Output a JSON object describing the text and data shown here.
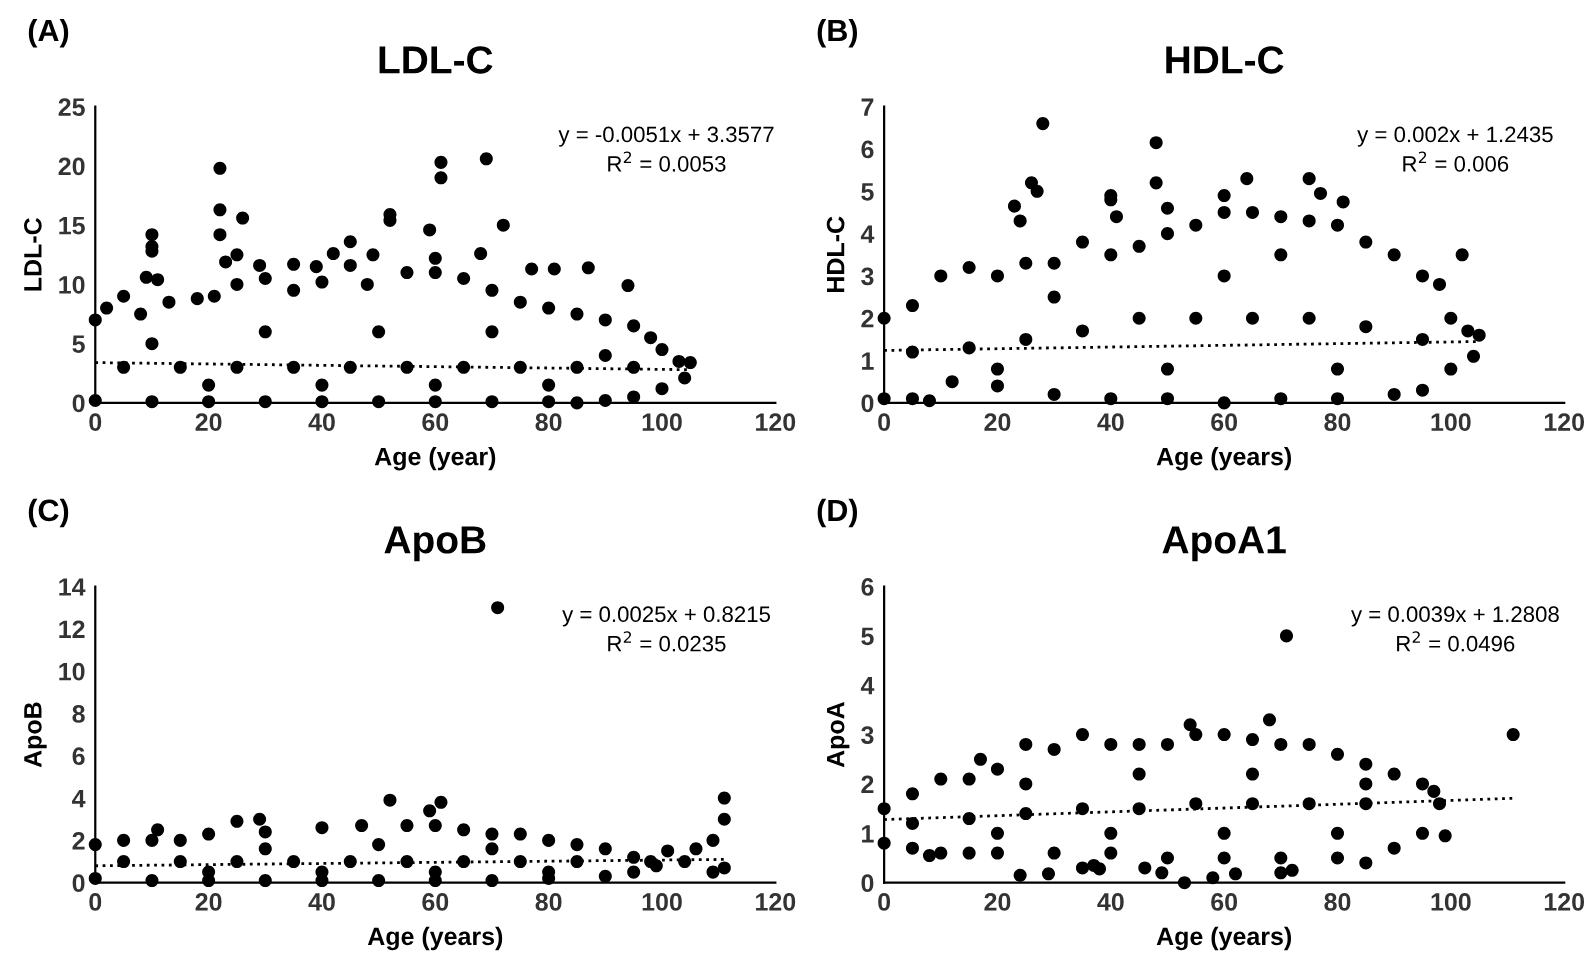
{
  "chart_data": [
    {
      "type": "scatter",
      "title": "LDL-C",
      "xlabel": "Age (year)",
      "ylabel": "LDL-C",
      "annotations": [
        "(A)",
        "y = -0.0051x + 3.3577",
        "R$^{2}$ = 0.0053"
      ],
      "xlim": [
        0,
        120
      ],
      "xticks": [
        0,
        20,
        40,
        60,
        80,
        100,
        120
      ],
      "ylim": [
        0,
        25
      ],
      "yticks": [
        0,
        5,
        10,
        15,
        20,
        25
      ],
      "grid": false,
      "legend": false,
      "series": [
        {
          "marker": "circle",
          "color": "#000000",
          "x": [
            10,
            10,
            10,
            9,
            11,
            22,
            22,
            22,
            26,
            23,
            25,
            29,
            35,
            39,
            42,
            45,
            45,
            49,
            52,
            52,
            59,
            61,
            61,
            69,
            68,
            72,
            77,
            81,
            87,
            94,
            60,
            0,
            2,
            5,
            8,
            13,
            18,
            21,
            25,
            30,
            35,
            40,
            48,
            55,
            60,
            65,
            70,
            75,
            80,
            85,
            90,
            95,
            98,
            100,
            103,
            105,
            104,
            0,
            10,
            20,
            30,
            40,
            50,
            60,
            70,
            80,
            85,
            90,
            95,
            100,
            5,
            15,
            25,
            35,
            45,
            55,
            65,
            75,
            85,
            95,
            10,
            30,
            50,
            70,
            90,
            20,
            40,
            60,
            80
          ],
          "values": [
            14.2,
            13.2,
            12.8,
            10.6,
            10.4,
            19.8,
            16.3,
            14.2,
            15.6,
            11.9,
            12.5,
            11.6,
            11.7,
            11.5,
            12.6,
            13.6,
            11.6,
            12.5,
            15.9,
            15.4,
            14.6,
            20.3,
            19.0,
            20.6,
            12.6,
            15.0,
            11.3,
            11.3,
            11.4,
            9.9,
            12.2,
            7,
            8,
            9,
            7.5,
            8.5,
            8.8,
            9,
            10,
            10.5,
            9.5,
            10.2,
            10,
            11,
            11,
            10.5,
            9.5,
            8.5,
            8,
            7.5,
            7,
            6.5,
            5.5,
            4.5,
            3.5,
            3.4,
            2.1,
            0.2,
            0.1,
            0.1,
            0.1,
            0.1,
            0.1,
            0.1,
            0.1,
            0.1,
            0,
            0.2,
            0.5,
            1.2,
            3,
            3,
            3,
            3,
            3,
            3,
            3,
            3,
            3,
            3,
            5,
            6,
            6,
            6,
            4,
            1.5,
            1.5,
            1.5,
            1.5
          ]
        },
        {
          "type": "line",
          "color": "#000000",
          "line_style": "dotted",
          "x": [
            0,
            105
          ],
          "values": [
            3.4,
            2.8
          ]
        }
      ]
    },
    {
      "type": "scatter",
      "title": "HDL-C",
      "xlabel": "Age (years)",
      "ylabel": "HDL-C",
      "annotations": [
        "(B)",
        "y = 0.002x + 1.2435",
        "R$^{2}$ = 0.006"
      ],
      "xlim": [
        0,
        120
      ],
      "xticks": [
        0,
        20,
        40,
        60,
        80,
        100,
        120
      ],
      "ylim": [
        0,
        7
      ],
      "yticks": [
        0,
        1,
        2,
        3,
        4,
        5,
        6,
        7
      ],
      "grid": false,
      "legend": false,
      "series": [
        {
          "marker": "circle",
          "color": "#000000",
          "x": [
            28,
            48,
            48,
            26,
            27,
            23,
            24,
            40,
            40,
            41,
            50,
            64,
            75,
            77,
            81,
            102,
            60,
            0,
            5,
            10,
            15,
            20,
            25,
            30,
            35,
            40,
            45,
            50,
            55,
            60,
            65,
            70,
            75,
            80,
            85,
            90,
            95,
            98,
            100,
            103,
            105,
            0,
            5,
            8,
            12,
            20,
            30,
            40,
            50,
            60,
            70,
            80,
            90,
            95,
            100,
            104,
            5,
            15,
            25,
            35,
            45,
            55,
            65,
            75,
            85,
            95,
            30,
            60,
            70,
            20,
            50,
            80
          ],
          "values": [
            6.6,
            6.15,
            5.2,
            5.2,
            5.0,
            4.65,
            4.3,
            4.9,
            4.8,
            4.4,
            4.6,
            5.3,
            5.3,
            4.95,
            4.75,
            3.5,
            4.9,
            2,
            2.3,
            3,
            3.2,
            3,
            3.3,
            3.3,
            3.8,
            3.5,
            3.7,
            4,
            4.2,
            4.5,
            4.5,
            4.4,
            4.3,
            4.2,
            3.8,
            3.5,
            3.0,
            2.8,
            2.0,
            1.7,
            1.6,
            0.1,
            0.1,
            0.05,
            0.5,
            0.4,
            0.2,
            0.1,
            0.1,
            0,
            0.1,
            0.1,
            0.2,
            0.3,
            0.8,
            1.1,
            1.2,
            1.3,
            1.5,
            1.7,
            2,
            2,
            2,
            2,
            1.8,
            1.5,
            2.5,
            3,
            3.5,
            0.8,
            0.8,
            0.8
          ]
        },
        {
          "type": "line",
          "color": "#000000",
          "line_style": "dotted",
          "x": [
            0,
            105
          ],
          "values": [
            1.24,
            1.45
          ]
        }
      ]
    },
    {
      "type": "scatter",
      "title": "ApoB",
      "xlabel": "Age (years)",
      "ylabel": "ApoB",
      "annotations": [
        "(C)",
        "y = 0.0025x + 0.8215",
        "R$^{2}$ = 0.0235"
      ],
      "xlim": [
        0,
        120
      ],
      "xticks": [
        0,
        20,
        40,
        60,
        80,
        100,
        120
      ],
      "ylim": [
        0,
        14
      ],
      "yticks": [
        0,
        2,
        4,
        6,
        8,
        10,
        12,
        14
      ],
      "grid": false,
      "legend": false,
      "series": [
        {
          "marker": "circle",
          "color": "#000000",
          "x": [
            71,
            52,
            61,
            59,
            111,
            111,
            109,
            106,
            101,
            104,
            109,
            111,
            99,
            29,
            25,
            11,
            0,
            5,
            10,
            15,
            20,
            30,
            40,
            47,
            55,
            60,
            65,
            70,
            75,
            80,
            85,
            90,
            95,
            98,
            0,
            10,
            20,
            30,
            40,
            50,
            60,
            70,
            80,
            90,
            95,
            5,
            15,
            25,
            35,
            45,
            55,
            65,
            75,
            85,
            30,
            50,
            70,
            20,
            40,
            60,
            80
          ],
          "values": [
            13,
            3.9,
            3.8,
            3.4,
            4,
            3,
            2,
            1.6,
            1.5,
            1.0,
            0.5,
            0.7,
            0.8,
            3,
            2.9,
            2.5,
            1.8,
            2,
            2,
            2,
            2.3,
            2.4,
            2.6,
            2.7,
            2.7,
            2.7,
            2.5,
            2.3,
            2.3,
            2,
            1.8,
            1.6,
            1.2,
            1.0,
            0.2,
            0.1,
            0.1,
            0.1,
            0.1,
            0.1,
            0.1,
            0.1,
            0.2,
            0.3,
            0.5,
            1,
            1,
            1,
            1,
            1,
            1,
            1,
            1,
            1,
            1.6,
            1.8,
            1.6,
            0.5,
            0.5,
            0.5,
            0.5
          ]
        },
        {
          "type": "line",
          "color": "#000000",
          "line_style": "dotted",
          "x": [
            0,
            111
          ],
          "values": [
            0.8,
            1.1
          ]
        }
      ]
    },
    {
      "type": "scatter",
      "title": "ApoA1",
      "xlabel": "Age (years)",
      "ylabel": "ApoA",
      "annotations": [
        "(D)",
        "y = 0.0039x + 1.2808",
        "R$^{2}$ = 0.0496"
      ],
      "xlim": [
        0,
        120
      ],
      "xticks": [
        0,
        20,
        40,
        60,
        80,
        100,
        120
      ],
      "ylim": [
        0,
        6
      ],
      "yticks": [
        0,
        1,
        2,
        3,
        4,
        5,
        6
      ],
      "grid": false,
      "legend": false,
      "series": [
        {
          "marker": "circle",
          "color": "#000000",
          "x": [
            71,
            111,
            68,
            54,
            24,
            29,
            53,
            58,
            62,
            35,
            37,
            38,
            46,
            49,
            70,
            72,
            8,
            99,
            97,
            0,
            5,
            10,
            15,
            17,
            20,
            25,
            30,
            35,
            40,
            45,
            50,
            55,
            60,
            65,
            70,
            75,
            80,
            85,
            90,
            95,
            98,
            0,
            5,
            10,
            15,
            20,
            30,
            40,
            50,
            60,
            70,
            80,
            85,
            90,
            95,
            5,
            15,
            25,
            35,
            45,
            55,
            65,
            75,
            85,
            25,
            45,
            65,
            85,
            20,
            40,
            60,
            80
          ],
          "values": [
            5.0,
            3.0,
            3.3,
            3.2,
            0.15,
            0.18,
            0,
            0.1,
            0.18,
            0.3,
            0.35,
            0.28,
            0.3,
            0.2,
            0.2,
            0.25,
            0.55,
            0.95,
            1.85,
            1.5,
            1.8,
            2.1,
            2.1,
            2.5,
            2.3,
            2.8,
            2.7,
            3.0,
            2.8,
            2.8,
            2.8,
            3.0,
            3.0,
            2.9,
            2.8,
            2.8,
            2.6,
            2.4,
            2.2,
            2.0,
            1.6,
            0.8,
            0.7,
            0.6,
            0.6,
            0.6,
            0.6,
            0.6,
            0.5,
            0.5,
            0.5,
            0.5,
            0.4,
            0.7,
            1.0,
            1.2,
            1.3,
            1.4,
            1.5,
            1.5,
            1.6,
            1.6,
            1.6,
            1.6,
            2,
            2.2,
            2.2,
            2,
            1,
            1,
            1,
            1
          ]
        },
        {
          "type": "line",
          "color": "#000000",
          "line_style": "dotted",
          "x": [
            0,
            111
          ],
          "values": [
            1.28,
            1.71
          ]
        }
      ]
    }
  ]
}
